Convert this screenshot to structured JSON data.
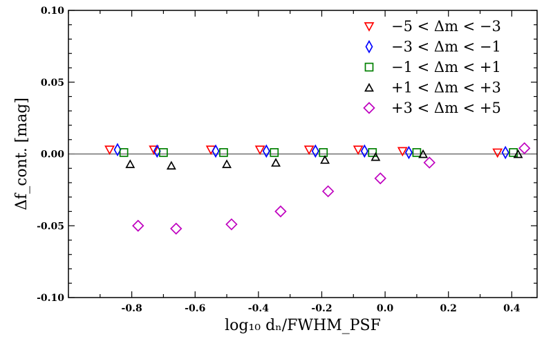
{
  "chart_data": {
    "type": "scatter",
    "xlabel": "log₁₀ dₙ/FWHM_PSF",
    "ylabel": "Δf_cont. [mag]",
    "xlim": [
      -1.0,
      0.48
    ],
    "ylim": [
      -0.1,
      0.1
    ],
    "x_ticks": [
      -0.8,
      -0.6,
      -0.4,
      -0.2,
      0.0,
      0.2,
      0.4
    ],
    "x_tick_labels": [
      "-0.8",
      "-0.6",
      "-0.4",
      "-0.2",
      "0.0",
      "0.2",
      "0.4"
    ],
    "y_ticks": [
      -0.1,
      -0.05,
      0.0,
      0.05,
      0.1
    ],
    "y_tick_labels": [
      "-0.10",
      "-0.05",
      "0.00",
      "0.05",
      "0.10"
    ],
    "reference_line_y": 0.0,
    "legend_position": "top-right",
    "series": [
      {
        "name": "−5 < Δm < −3",
        "marker": "triangle-down",
        "color": "#ff0000",
        "x": [
          -0.87,
          -0.73,
          -0.55,
          -0.395,
          -0.24,
          -0.085,
          0.055,
          0.355
        ],
        "y": [
          0.003,
          0.003,
          0.003,
          0.003,
          0.003,
          0.003,
          0.002,
          0.001
        ]
      },
      {
        "name": "−3 < Δm < −1",
        "marker": "diamond-thin",
        "color": "#0000ff",
        "x": [
          -0.845,
          -0.72,
          -0.535,
          -0.375,
          -0.22,
          -0.065,
          0.075,
          0.38
        ],
        "y": [
          0.003,
          0.002,
          0.002,
          0.002,
          0.002,
          0.002,
          0.001,
          0.001
        ]
      },
      {
        "name": "−1 < Δm < +1",
        "marker": "square",
        "color": "#008000",
        "x": [
          -0.825,
          -0.7,
          -0.51,
          -0.35,
          -0.195,
          -0.04,
          0.1,
          0.405
        ],
        "y": [
          0.001,
          0.001,
          0.001,
          0.001,
          0.001,
          0.001,
          0.001,
          0.001
        ]
      },
      {
        "name": "+1 < Δm < +3",
        "marker": "triangle-up",
        "color": "#000000",
        "x": [
          -0.805,
          -0.675,
          -0.5,
          -0.345,
          -0.19,
          -0.03,
          0.12,
          0.42
        ],
        "y": [
          -0.007,
          -0.008,
          -0.007,
          -0.006,
          -0.004,
          -0.002,
          0.0,
          0.0
        ]
      },
      {
        "name": "+3 < Δm < +5",
        "marker": "diamond",
        "color": "#bf00bf",
        "x": [
          -0.78,
          -0.66,
          -0.485,
          -0.33,
          -0.18,
          -0.015,
          0.14,
          0.44
        ],
        "y": [
          -0.05,
          -0.052,
          -0.049,
          -0.04,
          -0.026,
          -0.017,
          -0.006,
          0.004
        ]
      }
    ]
  }
}
